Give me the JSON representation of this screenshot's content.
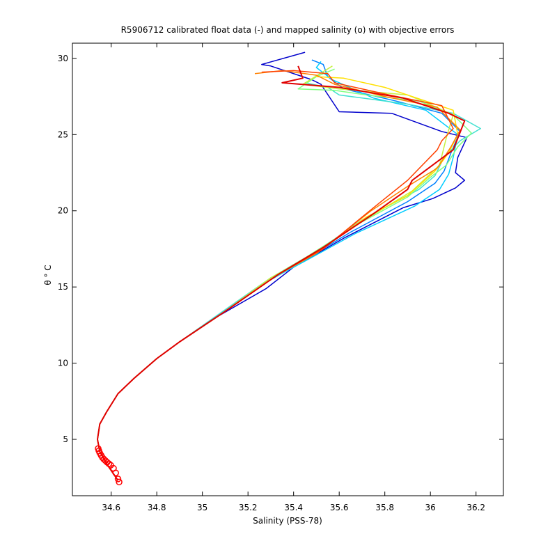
{
  "chart_data": {
    "type": "line",
    "title": "R5906712 calibrated float data (-) and mapped salinity (o) with objective errors",
    "xlabel": "Salinity (PSS-78)",
    "ylabel": "θ ° C",
    "xlim": [
      34.43,
      36.32
    ],
    "ylim": [
      1.3,
      31.0
    ],
    "xticks": [
      34.6,
      34.8,
      35.0,
      35.2,
      35.4,
      35.6,
      35.8,
      36.0,
      36.2
    ],
    "xtick_labels": [
      "34.6",
      "34.8",
      "35",
      "35.2",
      "35.4",
      "35.6",
      "35.8",
      "36",
      "36.2"
    ],
    "yticks": [
      5,
      10,
      15,
      20,
      25,
      30
    ],
    "ytick_labels": [
      "5",
      "10",
      "15",
      "20",
      "25",
      "30"
    ],
    "grid": false,
    "colors": {
      "blue": "#0000cc",
      "azure": "#0080ff",
      "cyan": "#00ccff",
      "teal": "#40e0d0",
      "green": "#80ff80",
      "yellow_green": "#c8f040",
      "yellow": "#ffe000",
      "orange": "#ff8000",
      "orange_red": "#ff4000",
      "red": "#e00000",
      "marker": "#ff0000"
    },
    "series": [
      {
        "color_key": "blue",
        "x": [
          35.45,
          35.26,
          35.3,
          35.48,
          35.52,
          35.6,
          35.83,
          36.05,
          36.16,
          36.12,
          36.11,
          36.15,
          36.11,
          36.01,
          35.88,
          35.62,
          35.4,
          35.28,
          35.06,
          34.9,
          34.8,
          34.7,
          34.63,
          34.58,
          34.55,
          34.54,
          34.55,
          34.58,
          34.63
        ],
        "y": [
          30.4,
          29.6,
          29.5,
          28.6,
          28.3,
          26.5,
          26.4,
          25.2,
          24.8,
          23.5,
          22.5,
          22.0,
          21.5,
          20.8,
          20.2,
          18.2,
          16.3,
          14.9,
          13.0,
          11.4,
          10.3,
          9.0,
          8.0,
          6.8,
          6.0,
          5.0,
          4.2,
          3.4,
          2.3
        ]
      },
      {
        "color_key": "azure",
        "x": [
          35.48,
          35.53,
          35.55,
          35.62,
          35.85,
          36.05,
          36.13,
          36.09,
          36.06,
          36.02,
          35.9,
          35.65,
          35.43,
          35.28,
          35.06,
          34.9,
          34.8,
          34.7,
          34.63,
          34.58,
          34.55,
          34.54,
          34.55,
          34.58,
          34.63
        ],
        "y": [
          29.9,
          29.6,
          28.8,
          28.0,
          27.2,
          26.4,
          25.2,
          23.8,
          22.6,
          21.8,
          20.6,
          18.6,
          16.6,
          15.3,
          13.0,
          11.4,
          10.3,
          9.0,
          8.0,
          6.8,
          6.0,
          5.0,
          4.2,
          3.4,
          2.3
        ]
      },
      {
        "color_key": "cyan",
        "x": [
          35.52,
          35.5,
          35.57,
          35.75,
          35.98,
          36.12,
          36.1,
          36.08,
          36.04,
          35.93,
          35.67,
          35.45,
          35.3,
          35.08,
          34.9,
          34.8,
          34.7,
          34.63,
          34.58,
          34.55,
          34.54,
          34.55,
          34.58,
          34.63
        ],
        "y": [
          29.8,
          29.4,
          28.6,
          27.4,
          26.6,
          25.0,
          23.5,
          22.4,
          21.4,
          20.3,
          18.5,
          16.7,
          15.5,
          13.2,
          11.4,
          10.3,
          9.0,
          8.0,
          6.8,
          6.0,
          5.0,
          4.2,
          3.4,
          2.3
        ]
      },
      {
        "color_key": "teal",
        "x": [
          35.45,
          35.55,
          35.6,
          35.9,
          36.1,
          36.22,
          36.13,
          36.06,
          36.02,
          35.95,
          35.7,
          35.46,
          35.3,
          35.08,
          34.9,
          34.8,
          34.7,
          34.63,
          34.58,
          34.55,
          34.54,
          34.55,
          34.58,
          34.63
        ],
        "y": [
          28.4,
          28.1,
          27.6,
          27.0,
          26.4,
          25.4,
          24.6,
          23.5,
          22.3,
          21.4,
          19.4,
          16.9,
          15.6,
          13.3,
          11.4,
          10.3,
          9.0,
          8.0,
          6.8,
          6.0,
          5.0,
          4.2,
          3.4,
          2.3
        ]
      },
      {
        "color_key": "green",
        "x": [
          35.58,
          35.5,
          35.42,
          35.58,
          35.72,
          35.95,
          36.1,
          36.18,
          36.12,
          36.07,
          36.0,
          35.9,
          35.68,
          35.46,
          35.3,
          35.08,
          34.9,
          34.8,
          34.7,
          34.63,
          34.58,
          34.55,
          34.54,
          34.55,
          34.58,
          34.63
        ],
        "y": [
          29.3,
          28.8,
          28.0,
          27.9,
          27.6,
          27.2,
          26.3,
          25.1,
          24.2,
          23.0,
          22.2,
          20.9,
          19.1,
          17.0,
          15.6,
          13.2,
          11.4,
          10.3,
          9.0,
          8.0,
          6.8,
          6.0,
          5.0,
          4.2,
          3.4,
          2.3
        ]
      },
      {
        "color_key": "yellow_green",
        "x": [
          35.57,
          35.44,
          35.6,
          35.9,
          35.95,
          36.1,
          36.07,
          36.04,
          35.92,
          35.7,
          35.47,
          35.3,
          35.08,
          34.9,
          34.8,
          34.7,
          34.63,
          34.58,
          34.55,
          34.54,
          34.55,
          34.58,
          34.63
        ],
        "y": [
          29.5,
          28.3,
          28.0,
          27.6,
          27.3,
          26.3,
          24.8,
          23.0,
          21.3,
          19.3,
          17.0,
          15.6,
          13.2,
          11.4,
          10.3,
          9.0,
          8.0,
          6.8,
          6.0,
          5.0,
          4.2,
          3.4,
          2.3
        ]
      },
      {
        "color_key": "yellow",
        "x": [
          35.5,
          35.62,
          35.8,
          35.98,
          36.1,
          36.12,
          36.08,
          36.02,
          35.9,
          35.72,
          35.5,
          35.32,
          35.1,
          34.9,
          34.8,
          34.7,
          34.63,
          34.58,
          34.55,
          34.54,
          34.55,
          34.58,
          34.63
        ],
        "y": [
          28.8,
          28.7,
          28.1,
          27.2,
          26.6,
          25.0,
          23.8,
          22.6,
          21.0,
          19.6,
          17.2,
          15.7,
          13.4,
          11.4,
          10.3,
          9.0,
          8.0,
          6.8,
          6.0,
          5.0,
          4.2,
          3.4,
          2.3
        ]
      },
      {
        "color_key": "orange",
        "x": [
          35.23,
          35.35,
          35.5,
          35.58,
          35.8,
          36.03,
          36.13,
          36.09,
          36.03,
          35.9,
          35.74,
          35.52,
          35.33,
          35.1,
          34.9,
          34.8,
          34.7,
          34.63,
          34.58,
          34.55,
          34.54,
          34.55,
          34.58,
          34.63
        ],
        "y": [
          29.0,
          29.2,
          28.9,
          28.3,
          27.5,
          26.8,
          25.3,
          24.2,
          22.8,
          21.6,
          20.0,
          17.4,
          15.8,
          13.4,
          11.4,
          10.3,
          9.0,
          8.0,
          6.8,
          6.0,
          5.0,
          4.2,
          3.4,
          2.3
        ]
      },
      {
        "color_key": "orange_red",
        "x": [
          35.26,
          35.4,
          35.55,
          35.58,
          35.82,
          36.05,
          36.1,
          36.05,
          36.03,
          35.9,
          35.75,
          35.53,
          35.33,
          35.1,
          34.9,
          34.8,
          34.7,
          34.63,
          34.58,
          34.55,
          34.54,
          34.55,
          34.58,
          34.63
        ],
        "y": [
          29.1,
          29.2,
          29.0,
          28.4,
          27.6,
          26.9,
          25.4,
          24.6,
          24.0,
          22.0,
          20.2,
          17.5,
          15.8,
          13.4,
          11.4,
          10.3,
          9.0,
          8.0,
          6.8,
          6.0,
          5.0,
          4.2,
          3.4,
          2.3
        ]
      },
      {
        "color_key": "red",
        "x": [
          35.42,
          35.44,
          35.35,
          35.6,
          35.88,
          36.08,
          36.15,
          36.1,
          35.92,
          35.9,
          35.75,
          35.53,
          35.33,
          35.1,
          34.9,
          34.8,
          34.7,
          34.63,
          34.58,
          34.55,
          34.54,
          34.55,
          34.58,
          34.63
        ],
        "y": [
          29.5,
          28.7,
          28.4,
          28.1,
          27.4,
          26.4,
          25.9,
          24.0,
          22.0,
          21.4,
          19.8,
          17.6,
          15.8,
          13.4,
          11.4,
          10.3,
          9.0,
          8.0,
          6.8,
          6.0,
          5.0,
          4.2,
          3.4,
          2.3
        ]
      }
    ],
    "mapped_points": {
      "color_key": "marker",
      "x": [
        34.543,
        34.546,
        34.55,
        34.556,
        34.562,
        34.568,
        34.575,
        34.582,
        34.59,
        34.598,
        34.61,
        34.62,
        34.63,
        34.635
      ],
      "y": [
        4.4,
        4.25,
        4.1,
        3.95,
        3.8,
        3.7,
        3.6,
        3.5,
        3.4,
        3.3,
        3.1,
        2.8,
        2.4,
        2.2
      ]
    }
  }
}
